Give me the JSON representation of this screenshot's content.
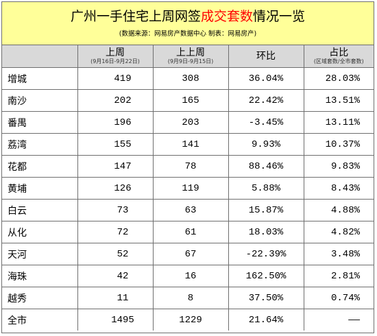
{
  "title": {
    "prefix": "广州一手住宅上周网签",
    "highlight": "成交套数",
    "suffix": "情况一览",
    "source": "(数据来源：网易房产数据中心 制表：网易房产)"
  },
  "columns": [
    {
      "label": "",
      "sub": ""
    },
    {
      "label": "上周",
      "sub": "(9月16日-9月22日)"
    },
    {
      "label": "上上周",
      "sub": "(9月9日-9月15日)"
    },
    {
      "label": "环比",
      "sub": ""
    },
    {
      "label": "占比",
      "sub": "(区域套数/全市套数)"
    }
  ],
  "rows": [
    {
      "district": "增城",
      "last_week": "419",
      "prev_week": "308",
      "mom": "36.04%",
      "share": "28.03%"
    },
    {
      "district": "南沙",
      "last_week": "202",
      "prev_week": "165",
      "mom": "22.42%",
      "share": "13.51%"
    },
    {
      "district": "番禺",
      "last_week": "196",
      "prev_week": "203",
      "mom": "-3.45%",
      "share": "13.11%"
    },
    {
      "district": "荔湾",
      "last_week": "155",
      "prev_week": "141",
      "mom": "9.93%",
      "share": "10.37%"
    },
    {
      "district": "花都",
      "last_week": "147",
      "prev_week": "78",
      "mom": "88.46%",
      "share": "9.83%"
    },
    {
      "district": "黄埔",
      "last_week": "126",
      "prev_week": "119",
      "mom": "5.88%",
      "share": "8.43%"
    },
    {
      "district": "白云",
      "last_week": "73",
      "prev_week": "63",
      "mom": "15.87%",
      "share": "4.88%"
    },
    {
      "district": "从化",
      "last_week": "72",
      "prev_week": "61",
      "mom": "18.03%",
      "share": "4.82%"
    },
    {
      "district": "天河",
      "last_week": "52",
      "prev_week": "67",
      "mom": "-22.39%",
      "share": "3.48%"
    },
    {
      "district": "海珠",
      "last_week": "42",
      "prev_week": "16",
      "mom": "162.50%",
      "share": "2.81%"
    },
    {
      "district": "越秀",
      "last_week": "11",
      "prev_week": "8",
      "mom": "37.50%",
      "share": "0.74%"
    },
    {
      "district": "全市",
      "last_week": "1495",
      "prev_week": "1229",
      "mom": "21.64%",
      "share": "——"
    }
  ],
  "colors": {
    "title_bg": "#ffff99",
    "header_bg": "#d9d9d9",
    "highlight": "#ff0000",
    "grid": "#6e6e6e"
  }
}
